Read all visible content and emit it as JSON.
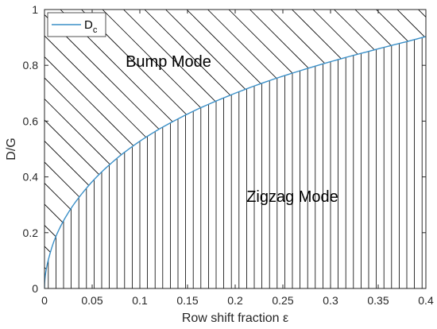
{
  "chart_data": {
    "type": "area",
    "xlabel": "Row shift fraction ε",
    "ylabel": "D/G",
    "xlim": [
      0,
      0.4
    ],
    "ylim": [
      0,
      1
    ],
    "xticks": [
      "0",
      "0.05",
      "0.1",
      "0.15",
      "0.2",
      "0.25",
      "0.3",
      "0.35",
      "0.4"
    ],
    "yticks": [
      "0",
      "0.2",
      "0.4",
      "0.6",
      "0.8",
      "1"
    ],
    "legend": {
      "position": "top-left",
      "entries": [
        {
          "label": "D",
          "subscript": "c"
        }
      ]
    },
    "series": [
      {
        "name": "Dc",
        "color": "#3a8fc7",
        "x": [
          0,
          0.0025,
          0.005,
          0.01,
          0.02,
          0.03,
          0.04,
          0.05,
          0.06,
          0.08,
          0.1,
          0.12,
          0.14,
          0.16,
          0.18,
          0.2,
          0.22,
          0.24,
          0.26,
          0.28,
          0.3,
          0.32,
          0.34,
          0.36,
          0.38,
          0.4
        ],
        "y": [
          0,
          0.08,
          0.115,
          0.17,
          0.243,
          0.298,
          0.343,
          0.383,
          0.418,
          0.478,
          0.528,
          0.571,
          0.608,
          0.642,
          0.672,
          0.7,
          0.726,
          0.75,
          0.772,
          0.793,
          0.813,
          0.832,
          0.85,
          0.868,
          0.885,
          0.903
        ]
      }
    ],
    "regions": [
      {
        "label": "Bump Mode",
        "hatch": "diagonal",
        "side": "above"
      },
      {
        "label": "Zigzag Mode",
        "hatch": "vertical",
        "side": "below"
      }
    ],
    "annotations": [
      {
        "text": "Bump Mode",
        "x": 0.13,
        "y": 0.795
      },
      {
        "text": "Zigzag Mode",
        "x": 0.26,
        "y": 0.31
      }
    ],
    "grid": false,
    "hatch_color": "#000000",
    "frame_color": "#262626"
  }
}
